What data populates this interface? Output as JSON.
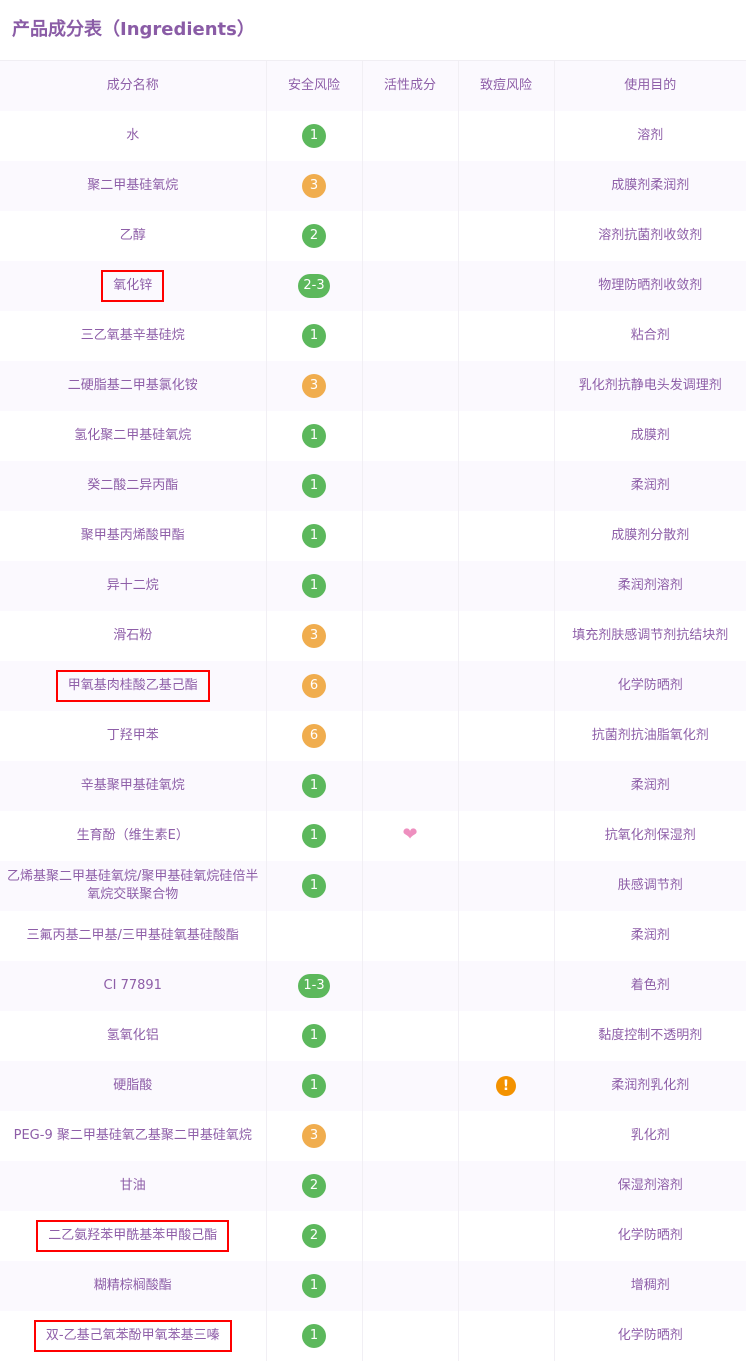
{
  "title": "产品成分表（Ingredients）",
  "headers": [
    "成分名称",
    "安全风险",
    "活性成分",
    "致痘风险",
    "使用目的"
  ],
  "colors": {
    "green": "#5cb85c",
    "orange": "#f0ad4e",
    "highlight": "#ff0000",
    "warning": "#f39200",
    "heart": "#ee8fbf"
  },
  "rows": [
    {
      "name": "水",
      "risk": "1",
      "color": "green",
      "purpose": "溶剂"
    },
    {
      "name": "聚二甲基硅氧烷",
      "risk": "3",
      "color": "orange",
      "purpose": "成膜剂柔润剂"
    },
    {
      "name": "乙醇",
      "risk": "2",
      "color": "green",
      "purpose": "溶剂抗菌剂收敛剂"
    },
    {
      "name": "氧化锌",
      "risk": "2-3",
      "color": "green",
      "purpose": "物理防晒剂收敛剂",
      "highlight": true
    },
    {
      "name": "三乙氧基辛基硅烷",
      "risk": "1",
      "color": "green",
      "purpose": "粘合剂"
    },
    {
      "name": "二硬脂基二甲基氯化铵",
      "risk": "3",
      "color": "orange",
      "purpose": "乳化剂抗静电头发调理剂"
    },
    {
      "name": "氢化聚二甲基硅氧烷",
      "risk": "1",
      "color": "green",
      "purpose": "成膜剂"
    },
    {
      "name": "癸二酸二异丙酯",
      "risk": "1",
      "color": "green",
      "purpose": "柔润剂"
    },
    {
      "name": "聚甲基丙烯酸甲酯",
      "risk": "1",
      "color": "green",
      "purpose": "成膜剂分散剂"
    },
    {
      "name": "异十二烷",
      "risk": "1",
      "color": "green",
      "purpose": "柔润剂溶剂"
    },
    {
      "name": "滑石粉",
      "risk": "3",
      "color": "orange",
      "purpose": "填充剂肤感调节剂抗结块剂"
    },
    {
      "name": "甲氧基肉桂酸乙基己酯",
      "risk": "6",
      "color": "orange",
      "purpose": "化学防晒剂",
      "highlight": true
    },
    {
      "name": "丁羟甲苯",
      "risk": "6",
      "color": "orange",
      "purpose": "抗菌剂抗油脂氧化剂"
    },
    {
      "name": "辛基聚甲基硅氧烷",
      "risk": "1",
      "color": "green",
      "purpose": "柔润剂"
    },
    {
      "name": "生育酚（维生素E）",
      "risk": "1",
      "color": "green",
      "purpose": "抗氧化剂保湿剂",
      "active": "heart-icon"
    },
    {
      "name": "乙烯基聚二甲基硅氧烷/聚甲基硅氧烷硅倍半氧烷交联聚合物",
      "risk": "1",
      "color": "green",
      "purpose": "肤感调节剂"
    },
    {
      "name": "三氟丙基二甲基/三甲基硅氧基硅酸酯",
      "risk": "",
      "color": "",
      "purpose": "柔润剂"
    },
    {
      "name": "CI 77891",
      "risk": "1-3",
      "color": "green",
      "purpose": "着色剂"
    },
    {
      "name": "氢氧化铝",
      "risk": "1",
      "color": "green",
      "purpose": "黏度控制不透明剂"
    },
    {
      "name": "硬脂酸",
      "risk": "1",
      "color": "green",
      "purpose": "柔润剂乳化剂",
      "acne": "!"
    },
    {
      "name": "PEG-9 聚二甲基硅氧乙基聚二甲基硅氧烷",
      "risk": "3",
      "color": "orange",
      "purpose": "乳化剂"
    },
    {
      "name": "甘油",
      "risk": "2",
      "color": "green",
      "purpose": "保湿剂溶剂"
    },
    {
      "name": "二乙氨羟苯甲酰基苯甲酸己酯",
      "risk": "2",
      "color": "green",
      "purpose": "化学防晒剂",
      "highlight": true
    },
    {
      "name": "糊精棕榈酸酯",
      "risk": "1",
      "color": "green",
      "purpose": "增稠剂"
    },
    {
      "name": "双-乙基己氧苯酚甲氧苯基三嗪",
      "risk": "1",
      "color": "green",
      "purpose": "化学防晒剂",
      "highlight": true
    }
  ]
}
